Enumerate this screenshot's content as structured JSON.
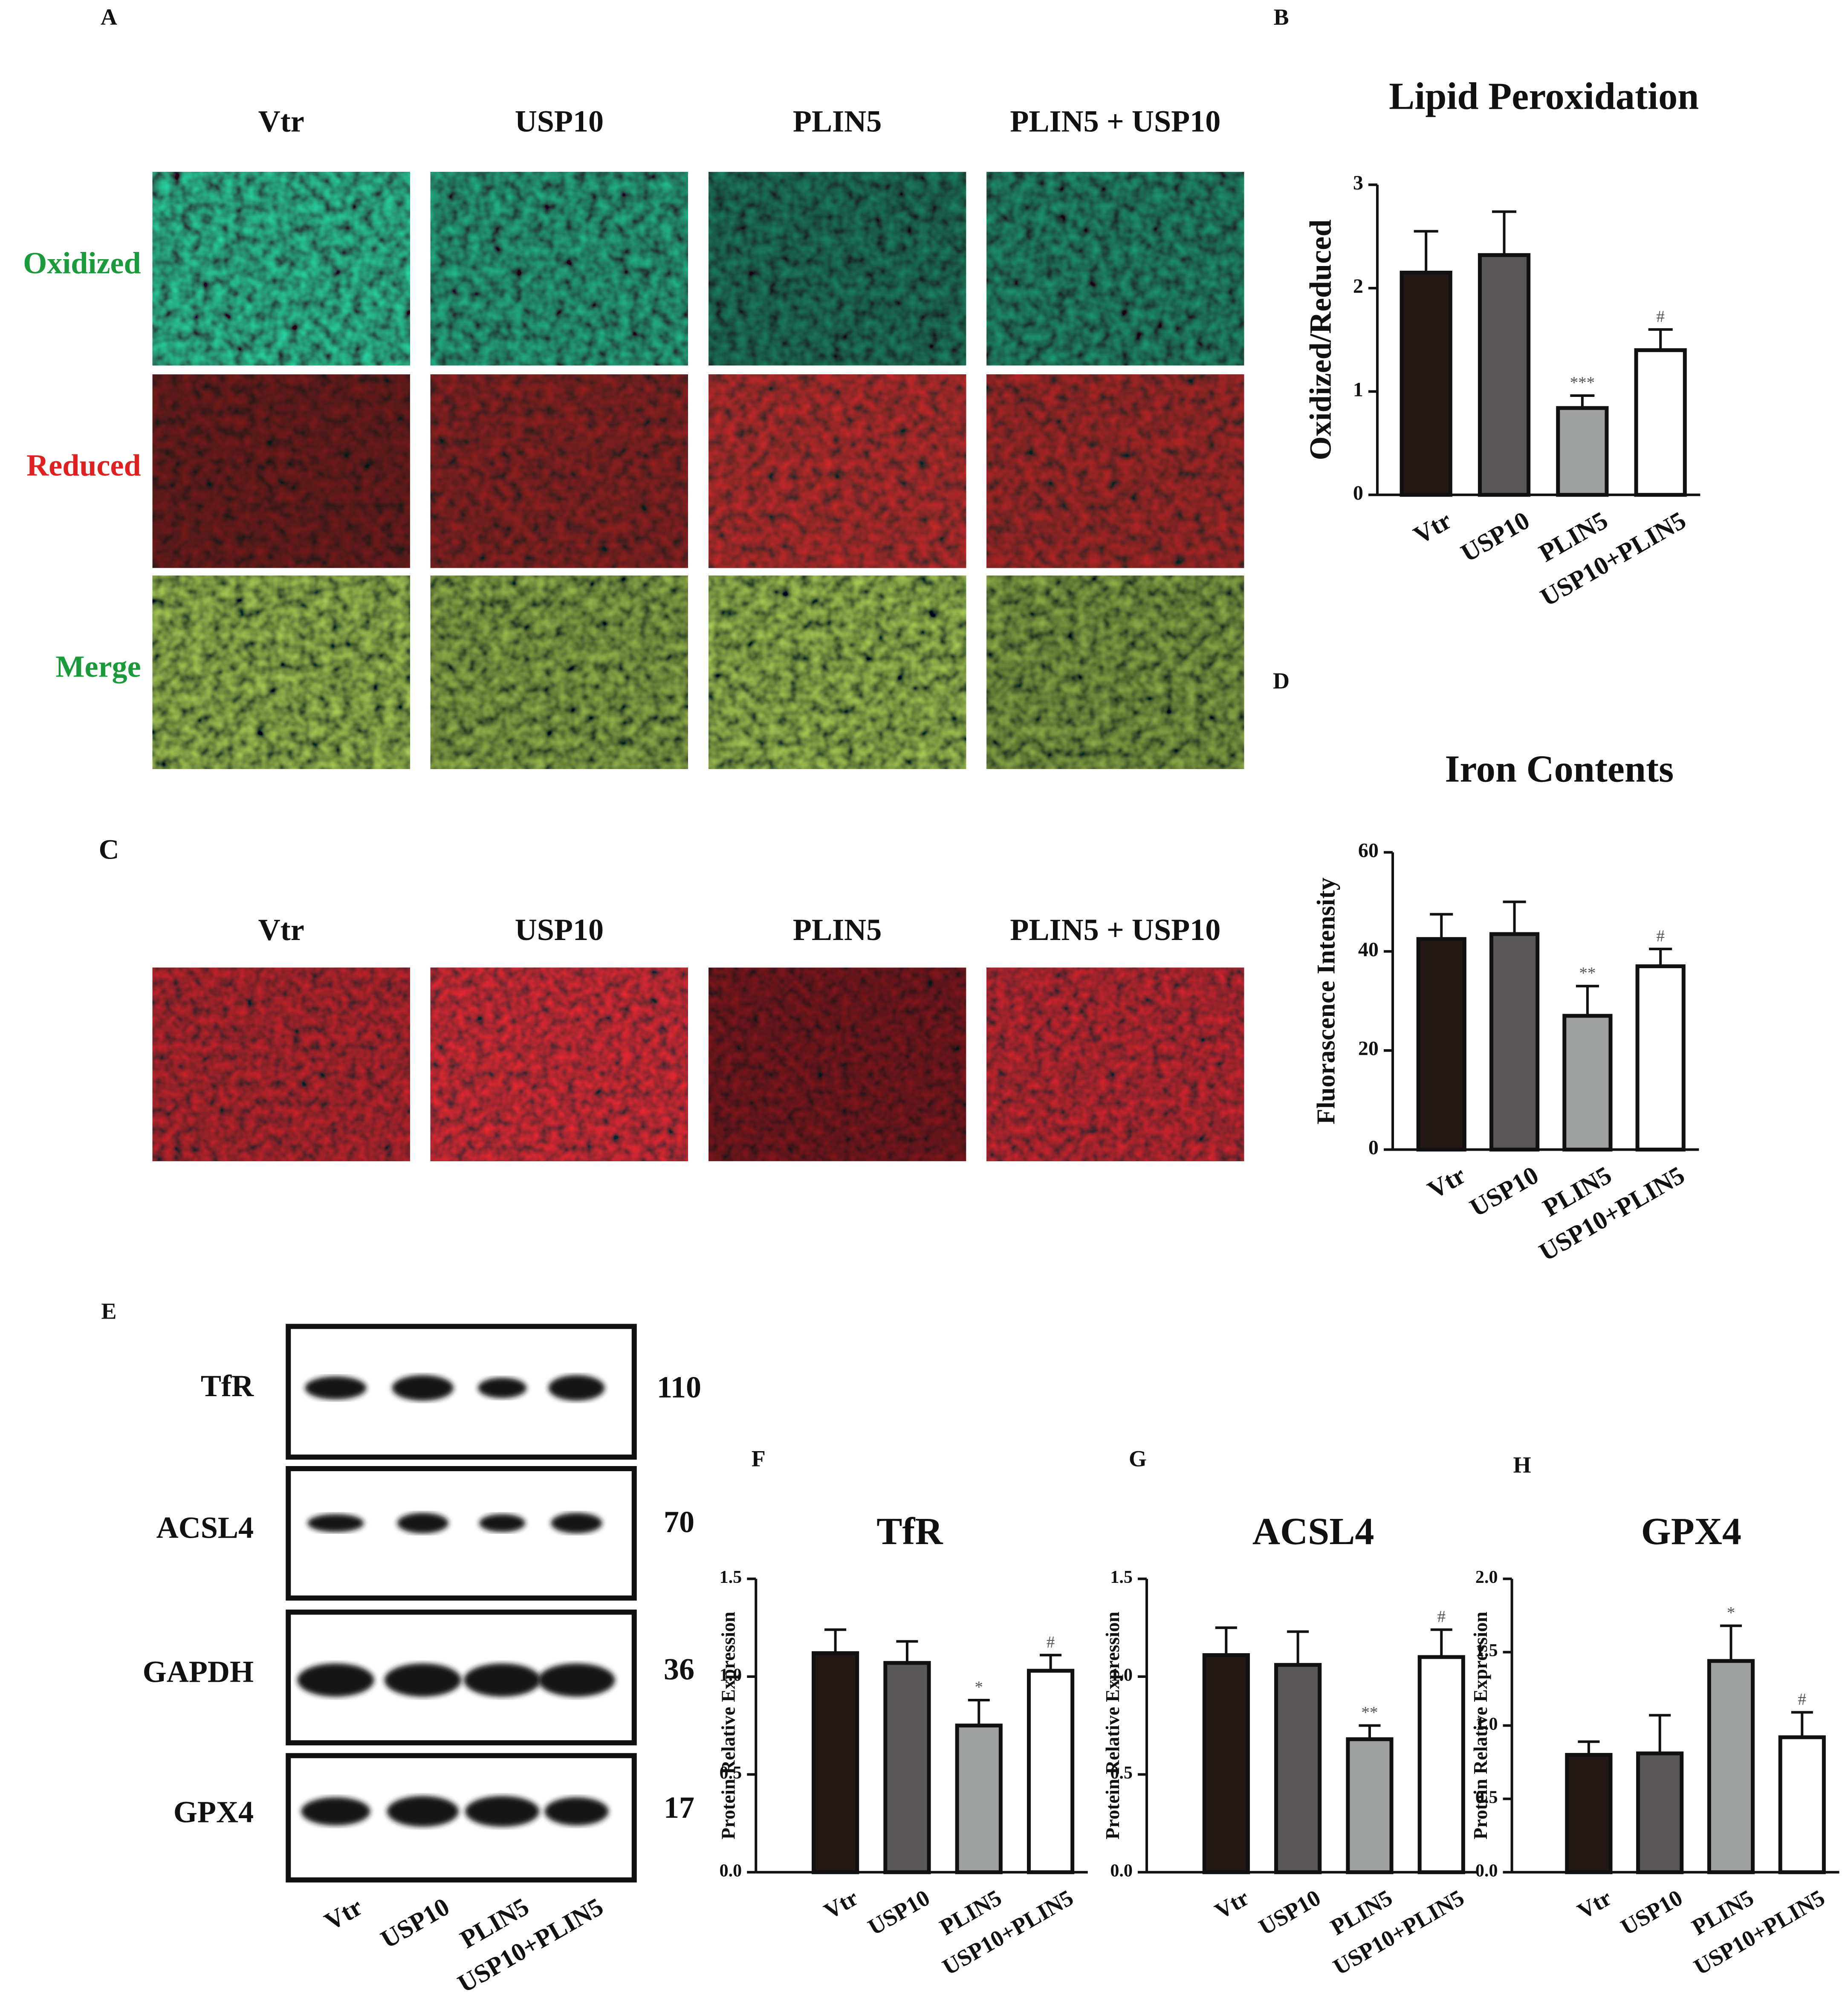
{
  "panel_a": {
    "letter": "A",
    "columns": [
      "Vtr",
      "USP10",
      "PLIN5",
      "PLIN5 + USP10"
    ],
    "rows": [
      "Oxidized",
      "Reduced",
      "Merge"
    ]
  },
  "panel_c": {
    "letter": "C",
    "columns": [
      "Vtr",
      "USP10",
      "PLIN5",
      "PLIN5 + USP10"
    ]
  },
  "panel_e": {
    "letter": "E",
    "proteins": [
      "TfR",
      "ACSL4",
      "GAPDH",
      "GPX4"
    ],
    "kda": [
      110,
      70,
      36,
      17
    ],
    "lanes": [
      "Vtr",
      "USP10",
      "PLIN5",
      "USP10+PLIN5"
    ]
  },
  "chart_data": [
    {
      "type": "bar",
      "panel": "B",
      "title": "Lipid Peroxidation",
      "y_label": "Oxidized/Reduced",
      "categories": [
        "Vtr",
        "USP10",
        "PLIN5",
        "USP10+PLIN5"
      ],
      "values": [
        2.15,
        2.32,
        0.84,
        1.4
      ],
      "errors": [
        0.4,
        0.42,
        0.12,
        0.2
      ],
      "annotations": [
        null,
        null,
        "***",
        "#"
      ],
      "colors": [
        "#231815",
        "#595757",
        "#9fa0a0",
        "#ffffff"
      ],
      "ylim": [
        0,
        3
      ],
      "yticks": [
        0,
        1,
        2,
        3
      ]
    },
    {
      "type": "bar",
      "panel": "D",
      "title": "Iron Contents",
      "y_label": "Fluorascence Intensity",
      "categories": [
        "Vtr",
        "USP10",
        "PLIN5",
        "USP10+PLIN5"
      ],
      "values": [
        42.5,
        43.5,
        27,
        37
      ],
      "errors": [
        5,
        6.5,
        6,
        3.5
      ],
      "annotations": [
        null,
        null,
        "**",
        "#"
      ],
      "colors": [
        "#231815",
        "#595757",
        "#9fa0a0",
        "#ffffff"
      ],
      "ylim": [
        0,
        60
      ],
      "yticks": [
        0,
        20,
        40,
        60
      ]
    },
    {
      "type": "bar",
      "panel": "F",
      "title": "TfR",
      "y_label": "Protein Relative Expression",
      "categories": [
        "Vtr",
        "USP10",
        "PLIN5",
        "USP10+PLIN5"
      ],
      "values": [
        1.12,
        1.07,
        0.75,
        1.03
      ],
      "errors": [
        0.12,
        0.11,
        0.13,
        0.08
      ],
      "annotations": [
        null,
        null,
        "*",
        "#"
      ],
      "colors": [
        "#231815",
        "#595757",
        "#9fa0a0",
        "#ffffff"
      ],
      "ylim": [
        0,
        1.5
      ],
      "yticks": [
        {
          "value": 0,
          "label": "0.0"
        },
        0.5,
        {
          "value": 1,
          "label": "1.0"
        },
        1.5
      ]
    },
    {
      "type": "bar",
      "panel": "G",
      "title": "ACSL4",
      "y_label": "Protein Relative Expression",
      "categories": [
        "Vtr",
        "USP10",
        "PLIN5",
        "USP10+PLIN5"
      ],
      "values": [
        1.11,
        1.06,
        0.68,
        1.1
      ],
      "errors": [
        0.14,
        0.17,
        0.07,
        0.14
      ],
      "annotations": [
        null,
        null,
        "**",
        "#"
      ],
      "colors": [
        "#231815",
        "#595757",
        "#9fa0a0",
        "#ffffff"
      ],
      "ylim": [
        0,
        1.5
      ],
      "yticks": [
        {
          "value": 0,
          "label": "0.0"
        },
        0.5,
        {
          "value": 1,
          "label": "1.0"
        },
        1.5
      ]
    },
    {
      "type": "bar",
      "panel": "H",
      "title": "GPX4",
      "y_label": "Protein Relative Expression",
      "categories": [
        "Vtr",
        "USP10",
        "PLIN5",
        "USP10+PLIN5"
      ],
      "values": [
        0.8,
        0.81,
        1.44,
        0.92
      ],
      "errors": [
        0.09,
        0.26,
        0.24,
        0.17
      ],
      "annotations": [
        null,
        null,
        "*",
        "#"
      ],
      "colors": [
        "#231815",
        "#595757",
        "#9fa0a0",
        "#ffffff"
      ],
      "ylim": [
        0,
        2
      ],
      "yticks": [
        {
          "value": 0,
          "label": "0.0"
        },
        0.5,
        {
          "value": 1,
          "label": "1.0"
        },
        1.5,
        {
          "value": 2,
          "label": "2.0"
        }
      ]
    }
  ]
}
